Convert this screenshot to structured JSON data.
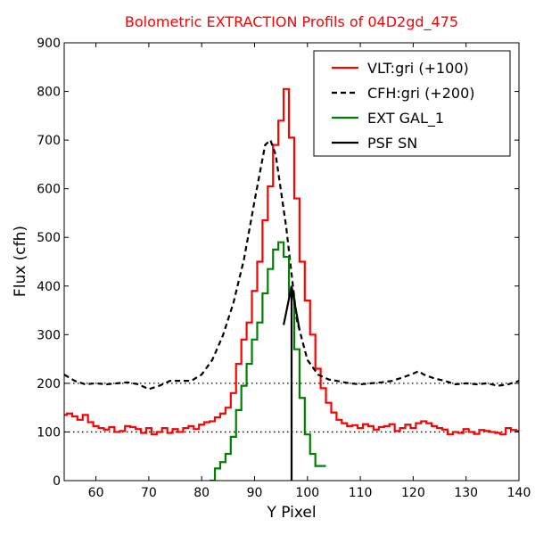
{
  "chart_data": {
    "type": "line",
    "title": "Bolometric EXTRACTION Profils of 04D2gd_475",
    "title_color": "#ff0000",
    "xlabel": "Y Pixel",
    "ylabel": "Flux (cfh)",
    "xlim": [
      54,
      140
    ],
    "ylim": [
      0,
      900
    ],
    "xticks": [
      60,
      70,
      80,
      90,
      100,
      110,
      120,
      130,
      140
    ],
    "yticks": [
      0,
      100,
      200,
      300,
      400,
      500,
      600,
      700,
      800,
      900
    ],
    "grid": false,
    "legend_position": "top-right",
    "reference_lines": [
      100,
      200
    ],
    "series": [
      {
        "name": "VLT:gri (+100)",
        "color": "#ff0000",
        "style": "steps",
        "x": [
          54,
          55,
          56,
          57,
          58,
          59,
          60,
          61,
          62,
          63,
          64,
          65,
          66,
          67,
          68,
          69,
          70,
          71,
          72,
          73,
          74,
          75,
          76,
          77,
          78,
          79,
          80,
          81,
          82,
          83,
          84,
          85,
          86,
          87,
          88,
          89,
          90,
          91,
          92,
          93,
          94,
          95,
          96,
          97,
          98,
          99,
          100,
          101,
          102,
          103,
          104,
          105,
          106,
          107,
          108,
          109,
          110,
          111,
          112,
          113,
          114,
          115,
          116,
          117,
          118,
          119,
          120,
          121,
          122,
          123,
          124,
          125,
          126,
          127,
          128,
          129,
          130,
          131,
          132,
          133,
          134,
          135,
          136,
          137,
          138,
          139,
          140
        ],
        "y": [
          135,
          138,
          132,
          125,
          135,
          120,
          112,
          108,
          105,
          110,
          100,
          102,
          112,
          110,
          106,
          98,
          108,
          95,
          100,
          108,
          98,
          106,
          100,
          108,
          112,
          106,
          115,
          120,
          122,
          130,
          138,
          150,
          180,
          240,
          290,
          325,
          390,
          450,
          535,
          605,
          690,
          740,
          805,
          705,
          580,
          450,
          370,
          300,
          230,
          190,
          160,
          140,
          125,
          118,
          112,
          114,
          108,
          116,
          112,
          105,
          110,
          112,
          116,
          102,
          108,
          115,
          108,
          118,
          122,
          118,
          112,
          108,
          105,
          95,
          100,
          98,
          106,
          100,
          96,
          104,
          102,
          100,
          98,
          95,
          108,
          104,
          102
        ]
      },
      {
        "name": "CFH:gri (+200)",
        "color": "#000000",
        "style": "dashed",
        "x": [
          54,
          56,
          58,
          60,
          62,
          64,
          66,
          68,
          70,
          72,
          74,
          76,
          78,
          80,
          82,
          84,
          86,
          88,
          90,
          92,
          93,
          94,
          96,
          98,
          100,
          102,
          104,
          106,
          108,
          110,
          112,
          114,
          116,
          118,
          120,
          121,
          122,
          124,
          126,
          128,
          130,
          132,
          134,
          136,
          138,
          140
        ],
        "y": [
          218,
          205,
          198,
          200,
          198,
          200,
          202,
          198,
          188,
          195,
          205,
          205,
          205,
          218,
          248,
          298,
          365,
          455,
          575,
          690,
          700,
          670,
          520,
          330,
          248,
          218,
          208,
          204,
          200,
          198,
          200,
          202,
          205,
          212,
          220,
          225,
          218,
          210,
          205,
          198,
          200,
          198,
          200,
          195,
          198,
          205
        ]
      },
      {
        "name": "EXT GAL_1",
        "color": "#008000",
        "style": "steps",
        "x": [
          82,
          83,
          84,
          85,
          86,
          87,
          88,
          89,
          90,
          91,
          92,
          93,
          94,
          95,
          96,
          97,
          98,
          99,
          100,
          101,
          102,
          103
        ],
        "y": [
          0,
          25,
          38,
          55,
          90,
          145,
          195,
          240,
          290,
          325,
          385,
          435,
          475,
          490,
          460,
          380,
          270,
          170,
          95,
          55,
          30,
          30
        ]
      },
      {
        "name": "PSF SN",
        "color": "#000000",
        "style": "solid",
        "line": {
          "x": [
            97,
            97
          ],
          "y": [
            0,
            400
          ]
        },
        "arrow_head": {
          "x": [
            95.5,
            97,
            98.5
          ],
          "y": [
            320,
            400,
            310
          ]
        }
      }
    ]
  }
}
